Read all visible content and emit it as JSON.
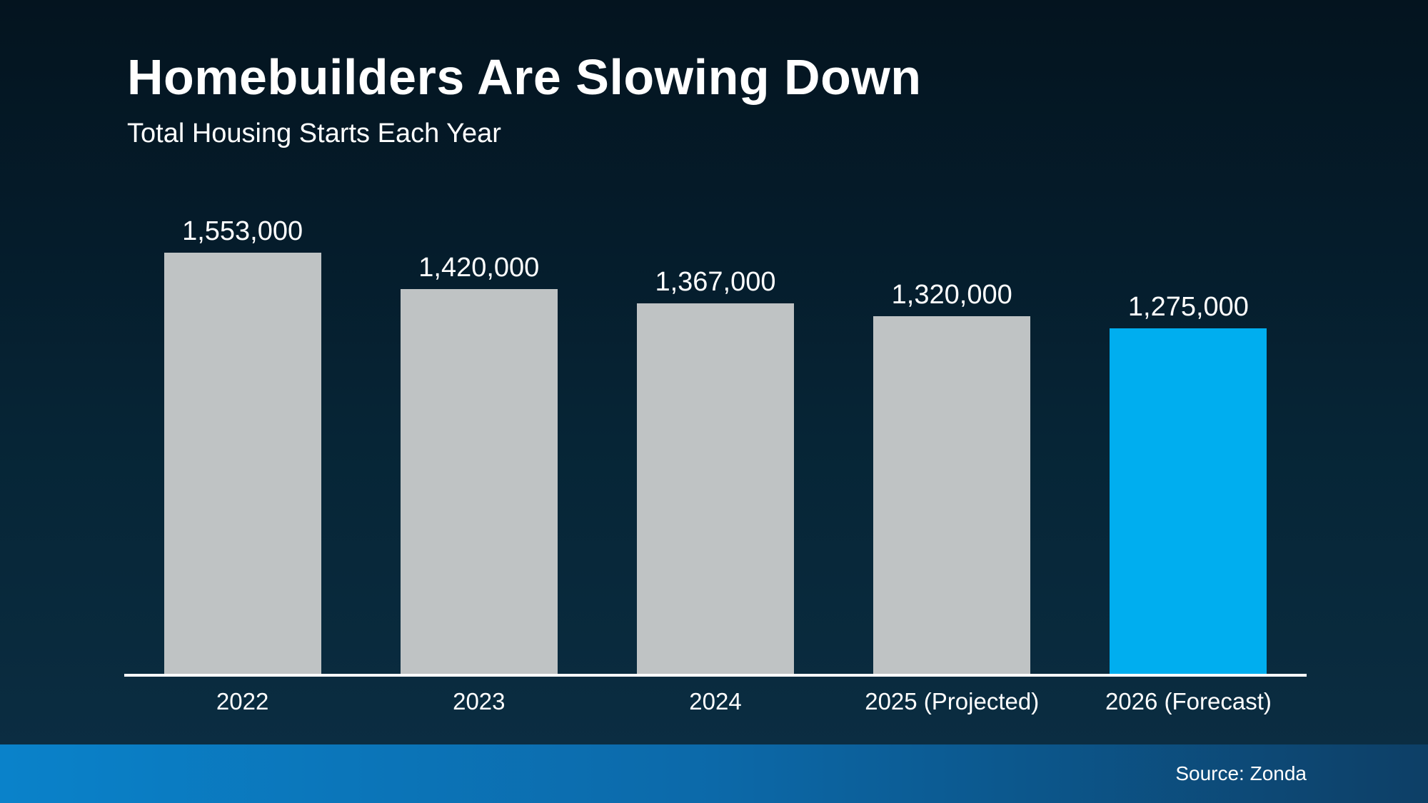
{
  "header": {
    "title": "Homebuilders Are Slowing Down",
    "subtitle": "Total Housing Starts Each Year"
  },
  "chart_data": {
    "type": "bar",
    "title": "Homebuilders Are Slowing Down",
    "subtitle": "Total Housing Starts Each Year",
    "categories": [
      "2022",
      "2023",
      "2024",
      "2025 (Projected)",
      "2026 (Forecast)"
    ],
    "values": [
      1553000,
      1420000,
      1367000,
      1320000,
      1275000
    ],
    "value_labels": [
      "1,553,000",
      "1,420,000",
      "1,367,000",
      "1,320,000",
      "1,275,000"
    ],
    "xlabel": "",
    "ylabel": "",
    "ylim": [
      0,
      1553000
    ],
    "grid": false,
    "legend": false,
    "bar_colors": [
      "#bfc3c4",
      "#bfc3c4",
      "#bfc3c4",
      "#bfc3c4",
      "#00aeef"
    ],
    "highlight_index": 4
  },
  "colors": {
    "bar_default": "#bfc3c4",
    "bar_highlight": "#00aeef",
    "axis_line": "#ffffff",
    "text": "#ffffff",
    "background_top": "#04141f",
    "background_bottom": "#0b2e44",
    "footer_gradient_left": "#0a82ca",
    "footer_gradient_right": "#0d3f66"
  },
  "footer": {
    "source_label": "Source: Zonda"
  }
}
